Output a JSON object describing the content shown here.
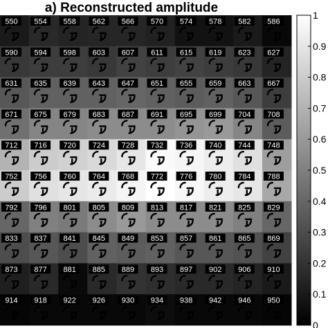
{
  "chart_data": {
    "type": "heatmap",
    "title": "a) Reconstructed amplitude",
    "rows": 10,
    "cols": 10,
    "labels": [
      [
        "550",
        "554",
        "558",
        "562",
        "566",
        "570",
        "574",
        "578",
        "582",
        "586"
      ],
      [
        "590",
        "594",
        "598",
        "603",
        "607",
        "611",
        "615",
        "619",
        "623",
        "627"
      ],
      [
        "631",
        "635",
        "639",
        "643",
        "647",
        "651",
        "655",
        "659",
        "663",
        "667"
      ],
      [
        "671",
        "675",
        "679",
        "683",
        "687",
        "691",
        "695",
        "699",
        "704",
        "708"
      ],
      [
        "712",
        "716",
        "720",
        "724",
        "728",
        "732",
        "736",
        "740",
        "744",
        "748"
      ],
      [
        "752",
        "756",
        "760",
        "764",
        "768",
        "772",
        "776",
        "780",
        "784",
        "788"
      ],
      [
        "792",
        "796",
        "801",
        "805",
        "809",
        "813",
        "817",
        "821",
        "825",
        "829"
      ],
      [
        "833",
        "837",
        "841",
        "845",
        "849",
        "853",
        "857",
        "861",
        "865",
        "869"
      ],
      [
        "873",
        "877",
        "881",
        "885",
        "889",
        "893",
        "897",
        "902",
        "906",
        "910"
      ],
      [
        "914",
        "918",
        "922",
        "926",
        "930",
        "934",
        "938",
        "942",
        "946",
        "950"
      ]
    ],
    "values": [
      [
        0.1,
        0.16,
        0.14,
        0.15,
        0.15,
        0.13,
        0.07,
        0.07,
        0.1,
        0.03
      ],
      [
        0.22,
        0.24,
        0.24,
        0.22,
        0.26,
        0.24,
        0.26,
        0.24,
        0.22,
        0.14
      ],
      [
        0.34,
        0.38,
        0.38,
        0.38,
        0.4,
        0.38,
        0.36,
        0.38,
        0.34,
        0.24
      ],
      [
        0.44,
        0.52,
        0.52,
        0.55,
        0.55,
        0.55,
        0.58,
        0.6,
        0.52,
        0.36
      ],
      [
        0.7,
        0.8,
        0.82,
        0.85,
        0.9,
        0.98,
        0.96,
        0.93,
        0.88,
        0.62
      ],
      [
        0.8,
        0.88,
        0.9,
        0.92,
        0.96,
        1.0,
        0.97,
        0.93,
        0.9,
        0.66
      ],
      [
        0.4,
        0.5,
        0.48,
        0.55,
        0.6,
        0.55,
        0.55,
        0.55,
        0.5,
        0.4
      ],
      [
        0.3,
        0.34,
        0.3,
        0.38,
        0.36,
        0.38,
        0.34,
        0.34,
        0.32,
        0.26
      ],
      [
        0.12,
        0.16,
        0.04,
        0.16,
        0.2,
        0.18,
        0.16,
        0.16,
        0.14,
        0.1
      ],
      [
        0.02,
        0.03,
        0.03,
        0.03,
        0.03,
        0.05,
        0.03,
        0.03,
        0.03,
        0.02
      ]
    ],
    "colormap": "gray",
    "clim": [
      0,
      1
    ],
    "colorbar_ticks": [
      "0",
      "0.1",
      "0.2",
      "0.3",
      "0.4",
      "0.5",
      "0.6",
      "0.7",
      "0.8",
      "0.9",
      "1"
    ],
    "label_text_color": "#ffffff",
    "label_box_color": "#000000",
    "glyph_color": "#000000"
  }
}
